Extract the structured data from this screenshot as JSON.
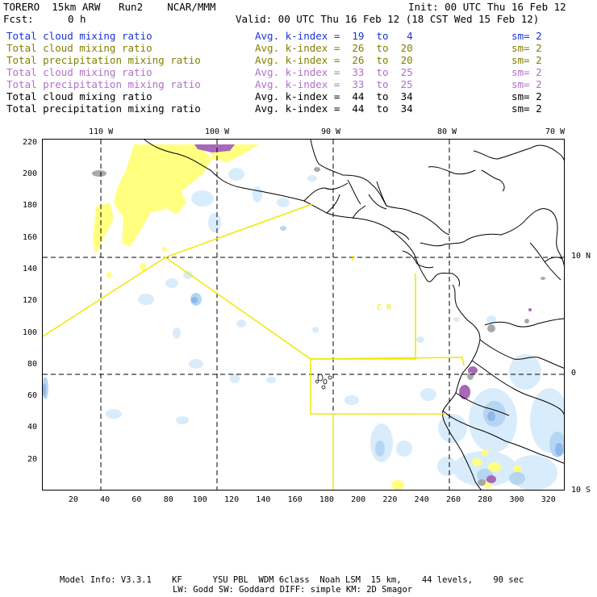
{
  "header": {
    "model": "TORERO  15km ARW   Run2    NCAR/MMM",
    "init": "Init: 00 UTC Thu 16 Feb 12",
    "fcst_label": "Fcst:",
    "fcst_value": "0 h",
    "valid": "Valid: 00 UTC Thu 16 Feb 12 (18 CST Wed 15 Feb 12)"
  },
  "legend": [
    {
      "field": "Total cloud mixing ratio",
      "kindex": "Avg. k-index =  19  to   4",
      "sm": "sm= 2",
      "color": "#1a33d6"
    },
    {
      "field": "Total cloud mixing ratio",
      "kindex": "Avg. k-index =  26  to  20",
      "sm": "sm= 2",
      "color": "#808000"
    },
    {
      "field": "Total precipitation mixing ratio",
      "kindex": "Avg. k-index =  26  to  20",
      "sm": "sm= 2",
      "color": "#808000"
    },
    {
      "field": "Total cloud mixing ratio",
      "kindex": "Avg. k-index =  33  to  25",
      "sm": "sm= 2",
      "color": "#b070c8"
    },
    {
      "field": "Total precipitation mixing ratio",
      "kindex": "Avg. k-index =  33  to  25",
      "sm": "sm= 2",
      "color": "#b070c8"
    },
    {
      "field": "Total cloud mixing ratio",
      "kindex": "Avg. k-index =  44  to  34",
      "sm": "sm= 2",
      "color": "#000000"
    },
    {
      "field": "Total precipitation mixing ratio",
      "kindex": "Avg. k-index =  44  to  34",
      "sm": "sm= 2",
      "color": "#000000"
    }
  ],
  "map": {
    "top_labels": [
      "110 W",
      "100 W",
      "90 W",
      "80 W",
      "70 W"
    ],
    "right_labels": [
      "10 N",
      "0",
      "10 S"
    ],
    "left_ticks": [
      "20",
      "40",
      "60",
      "80",
      "100",
      "120",
      "140",
      "160",
      "180",
      "200",
      "220"
    ],
    "bottom_ticks": [
      "20",
      "40",
      "60",
      "80",
      "100",
      "120",
      "140",
      "160",
      "180",
      "200",
      "220",
      "240",
      "260",
      "280",
      "300",
      "320"
    ],
    "grid_x": [
      40,
      112,
      184,
      260
    ],
    "grid_y": [
      76,
      150
    ],
    "region_label": "C  R",
    "colors": {
      "cloud_light": "#d9ecfb",
      "cloud_mid": "#b5d6f2",
      "cloud_dark": "#8cb8ea",
      "precip": "#ffff80",
      "purple": "#a868b8",
      "gray": "#a8a8a8",
      "box": "#f0e800"
    }
  },
  "footer": {
    "line1": "Model Info: V3.3.1    KF      YSU PBL  WDM 6class  Noah LSM  15 km,    44 levels,    90 sec",
    "line2": "LW: Godd SW: Goddard DIFF: simple KM: 2D Smagor"
  }
}
